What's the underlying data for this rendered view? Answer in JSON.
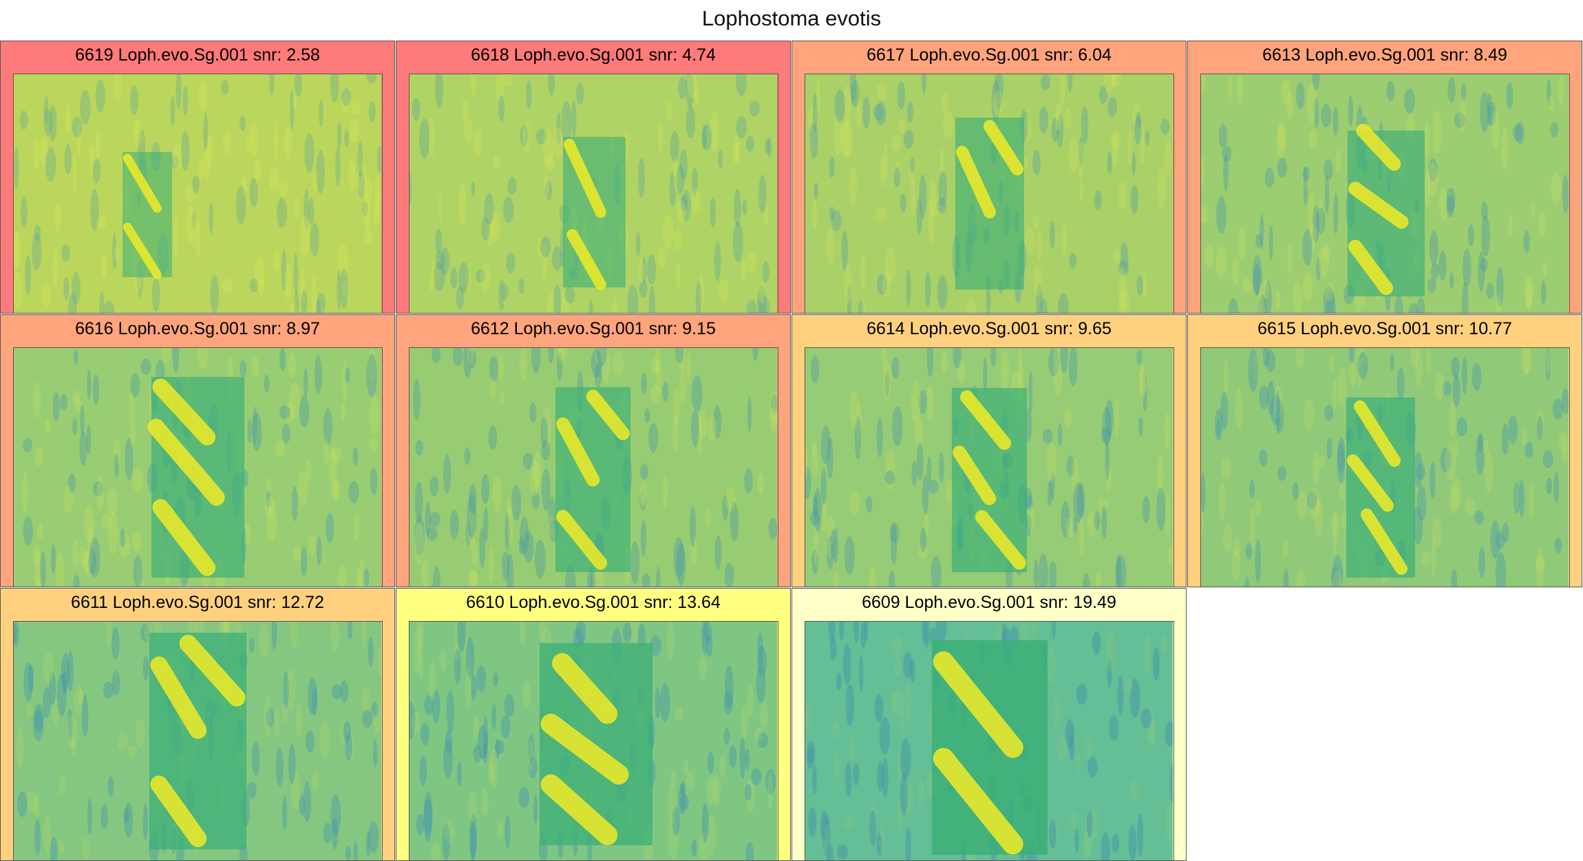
{
  "title": "Lophostoma evotis",
  "panels": [
    {
      "label": "6619 Loph.evo.Sg.001 snr: 2.58",
      "bg": "#ff7a7a",
      "snr": 2.58
    },
    {
      "label": "6618 Loph.evo.Sg.001 snr: 4.74",
      "bg": "#ff7a7a",
      "snr": 4.74
    },
    {
      "label": "6617 Loph.evo.Sg.001 snr: 6.04",
      "bg": "#ffa47c",
      "snr": 6.04
    },
    {
      "label": "6613 Loph.evo.Sg.001 snr: 8.49",
      "bg": "#ffa47c",
      "snr": 8.49
    },
    {
      "label": "6616 Loph.evo.Sg.001 snr: 8.97",
      "bg": "#ffa47c",
      "snr": 8.97
    },
    {
      "label": "6612 Loph.evo.Sg.001 snr: 9.15",
      "bg": "#ffa47c",
      "snr": 9.15
    },
    {
      "label": "6614 Loph.evo.Sg.001 snr: 9.65",
      "bg": "#ffd17f",
      "snr": 9.65
    },
    {
      "label": "6615 Loph.evo.Sg.001 snr: 10.77",
      "bg": "#ffd17f",
      "snr": 10.77
    },
    {
      "label": "6611 Loph.evo.Sg.001 snr: 12.72",
      "bg": "#ffd17f",
      "snr": 12.72
    },
    {
      "label": "6610 Loph.evo.Sg.001 snr: 13.64",
      "bg": "#ffff80",
      "snr": 13.64
    },
    {
      "label": "6609 Loph.evo.Sg.001 snr: 19.49",
      "bg": "#ffffc8",
      "snr": 19.49
    }
  ]
}
